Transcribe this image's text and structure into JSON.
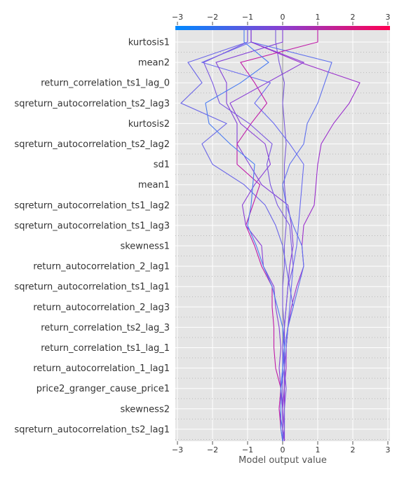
{
  "chart_data": {
    "type": "line",
    "subtype": "shap-decision-plot",
    "xlabel": "Model output value",
    "xlim": [
      -3,
      3
    ],
    "xticks": [
      -3,
      -2,
      -1,
      0,
      1,
      2,
      3
    ],
    "top_xticks": [
      -3,
      -2,
      -1,
      0,
      1,
      2,
      3
    ],
    "base_value": 0,
    "grid": true,
    "colorbar": {
      "from": "#0089ff",
      "mid": "#8a3fd1",
      "to": "#ff0052",
      "position": "top"
    },
    "features": [
      "kurtosis1",
      "mean2",
      "return_correlation_ts1_lag_0",
      "sqreturn_autocorrelation_ts2_lag3",
      "kurtosis2",
      "sqreturn_autocorrelation_ts2_lag2",
      "sd1",
      "mean1",
      "sqreturn_autocorrelation_ts1_lag2",
      "sqreturn_autocorrelation_ts1_lag3",
      "skewness1",
      "return_autocorrelation_2_lag1",
      "sqreturn_autocorrelation_ts1_lag1",
      "return_autocorrelation_2_lag3",
      "return_correlation_ts2_lag_3",
      "return_correlation_ts1_lag_1",
      "return_autocorrelation_1_lag1",
      "price2_granger_cause_price1",
      "skewness2",
      "sqreturn_autocorrelation_ts2_lag1"
    ],
    "series": [
      {
        "color": "#7b5bd9",
        "values": [
          0,
          0,
          0,
          0,
          0,
          0,
          0.05,
          0,
          0,
          0.05,
          0.05,
          0.1,
          0.1,
          0.05,
          0.05,
          0.1,
          0.05,
          0,
          0.05,
          -0.1,
          -0.2
        ]
      },
      {
        "color": "#6a6cf0",
        "values": [
          0,
          0.05,
          0.05,
          0.05,
          0.05,
          0.1,
          0.15,
          0.2,
          0.25,
          0.3,
          0.4,
          0.45,
          0.5,
          0.55,
          0.6,
          0.2,
          -0.25,
          -0.8,
          -0.35,
          -2.3,
          -0.9
        ]
      },
      {
        "color": "#9b2fcc",
        "values": [
          0.05,
          0.05,
          0.05,
          0.05,
          0.1,
          0.1,
          0.15,
          0.25,
          0.4,
          0.6,
          0.55,
          0.6,
          0.9,
          0.95,
          1.0,
          1.1,
          1.45,
          1.9,
          2.2,
          0.5,
          -0.9
        ]
      },
      {
        "color": "#8340d8",
        "values": [
          0.05,
          0.05,
          0.0,
          0.05,
          0.05,
          0.05,
          0.05,
          0.1,
          0.15,
          0.2,
          0.3,
          0.25,
          0.15,
          -0.6,
          -0.95,
          -1.3,
          -1.3,
          -1.6,
          -1.6,
          -1.9,
          0
        ]
      },
      {
        "color": "#6b66e8",
        "values": [
          0,
          0,
          -0.1,
          -0.05,
          0.05,
          0.1,
          0.15,
          0.3,
          0.2,
          0.1,
          0.0,
          -0.2,
          -0.5,
          -1.1,
          -2.0,
          -2.3,
          -1.6,
          -2.9,
          -2.3,
          -2.7,
          -1.0
        ]
      },
      {
        "color": "#5f70ee",
        "values": [
          0,
          0,
          0,
          -0.05,
          0,
          0.05,
          0.15,
          0.3,
          0.45,
          0.6,
          0.55,
          0.3,
          0.1,
          0.0,
          0.2,
          0.6,
          0.7,
          1.0,
          1.2,
          1.4,
          -0.9
        ]
      },
      {
        "color": "#c01aa8",
        "values": [
          0,
          -0.05,
          -0.1,
          -0.05,
          -0.2,
          -0.25,
          -0.25,
          -0.3,
          -0.3,
          -0.6,
          -0.8,
          -1.05,
          -0.85,
          -0.65,
          -1.3,
          -1.3,
          -0.9,
          -0.45,
          -0.8,
          -1.2,
          1.0
        ]
      },
      {
        "color": "#8a3fd6",
        "values": [
          0.05,
          0.0,
          0.0,
          -0.05,
          -0.1,
          -0.05,
          -0.1,
          -0.2,
          -0.25,
          -0.55,
          -0.6,
          -1.05,
          -1.15,
          -0.8,
          -0.35,
          -0.5,
          -1.2,
          -1.5,
          -0.45,
          0.6,
          -0.9
        ]
      },
      {
        "color": "#7b58e0",
        "values": [
          0,
          0.05,
          0.05,
          0.1,
          0.05,
          0.0,
          0.05,
          0.1,
          0.15,
          0.3,
          0.25,
          0.2,
          -0.15,
          -0.35,
          -0.45,
          -0.3,
          -0.95,
          -1.8,
          -2.0,
          -2.25,
          -1.0
        ]
      },
      {
        "color": "#4a7cf2",
        "values": [
          0,
          -0.05,
          -0.05,
          -0.05,
          0,
          0.05,
          0.0,
          -0.15,
          -0.3,
          -0.55,
          -0.75,
          -1.0,
          -0.9,
          -0.85,
          -0.8,
          -1.5,
          -2.1,
          -2.2,
          -1.2,
          -0.4,
          -1.1
        ]
      }
    ]
  }
}
